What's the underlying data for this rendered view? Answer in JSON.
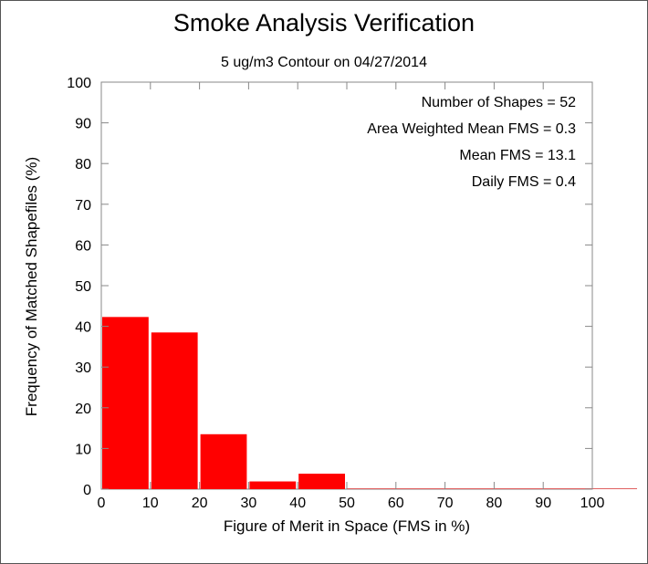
{
  "chart_data": {
    "type": "bar",
    "title": "Smoke Analysis Verification",
    "subtitle": "5 ug/m3 Contour on 04/27/2014",
    "xlabel": "Figure of Merit in Space (FMS in %)",
    "ylabel": "Frequency of Matched Shapefiles (%)",
    "xlim": [
      0,
      100
    ],
    "ylim": [
      0,
      100
    ],
    "xticks": [
      0,
      10,
      20,
      30,
      40,
      50,
      60,
      70,
      80,
      90,
      100
    ],
    "yticks": [
      0,
      10,
      20,
      30,
      40,
      50,
      60,
      70,
      80,
      90,
      100
    ],
    "bins": [
      {
        "start": 0,
        "end": 10,
        "value": 42.3
      },
      {
        "start": 10,
        "end": 20,
        "value": 38.5
      },
      {
        "start": 20,
        "end": 30,
        "value": 13.5
      },
      {
        "start": 30,
        "end": 40,
        "value": 1.9
      },
      {
        "start": 40,
        "end": 50,
        "value": 3.8
      },
      {
        "start": 50,
        "end": 60,
        "value": 0
      },
      {
        "start": 60,
        "end": 70,
        "value": 0
      },
      {
        "start": 70,
        "end": 80,
        "value": 0
      },
      {
        "start": 80,
        "end": 90,
        "value": 0
      },
      {
        "start": 90,
        "end": 100,
        "value": 0
      }
    ],
    "bar_color": "#ff0000",
    "grid": false,
    "annotations": [
      "Number of Shapes = 52",
      "Area Weighted Mean FMS = 0.3",
      "Mean FMS = 13.1",
      "Daily FMS = 0.4"
    ]
  }
}
